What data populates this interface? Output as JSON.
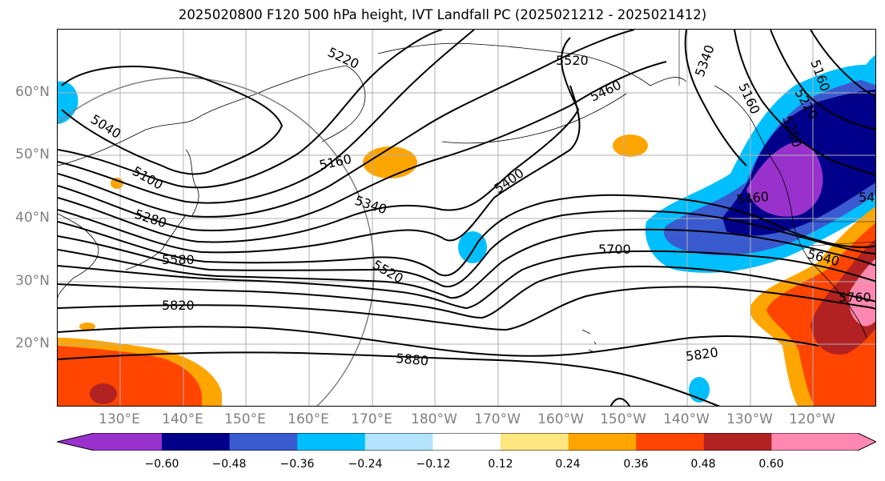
{
  "title": "2025020800 F120 500 hPa height, IVT Landfall PC (2025021212 - 2025021412)",
  "lat_labels": [
    "60°N",
    "50°N",
    "40°N",
    "30°N",
    "20°N"
  ],
  "lon_labels": [
    "130°E",
    "140°E",
    "150°E",
    "160°E",
    "170°E",
    "180°W",
    "170°W",
    "160°W",
    "150°W",
    "140°W",
    "130°W",
    "120°W"
  ],
  "contour_labels": [
    "5220",
    "5520",
    "5340",
    "5160",
    "5460",
    "5040",
    "5160",
    "5100",
    "5160",
    "5400",
    "5280",
    "5340",
    "5460",
    "5580",
    "5700",
    "5640",
    "5520",
    "5820",
    "5760",
    "5880",
    "5820",
    "5280",
    "5220",
    "54"
  ],
  "colorbar": {
    "ticks": [
      "−0.60",
      "−0.48",
      "−0.36",
      "−0.24",
      "−0.12",
      "0.12",
      "0.24",
      "0.36",
      "0.48",
      "0.60"
    ],
    "colors": [
      "#9932cc",
      "#00008b",
      "#3a5bd0",
      "#00bfff",
      "#b3e3ff",
      "#ffffff",
      "#ffe680",
      "#ffa500",
      "#ff4500",
      "#b22222",
      "#ff88b0"
    ]
  }
}
